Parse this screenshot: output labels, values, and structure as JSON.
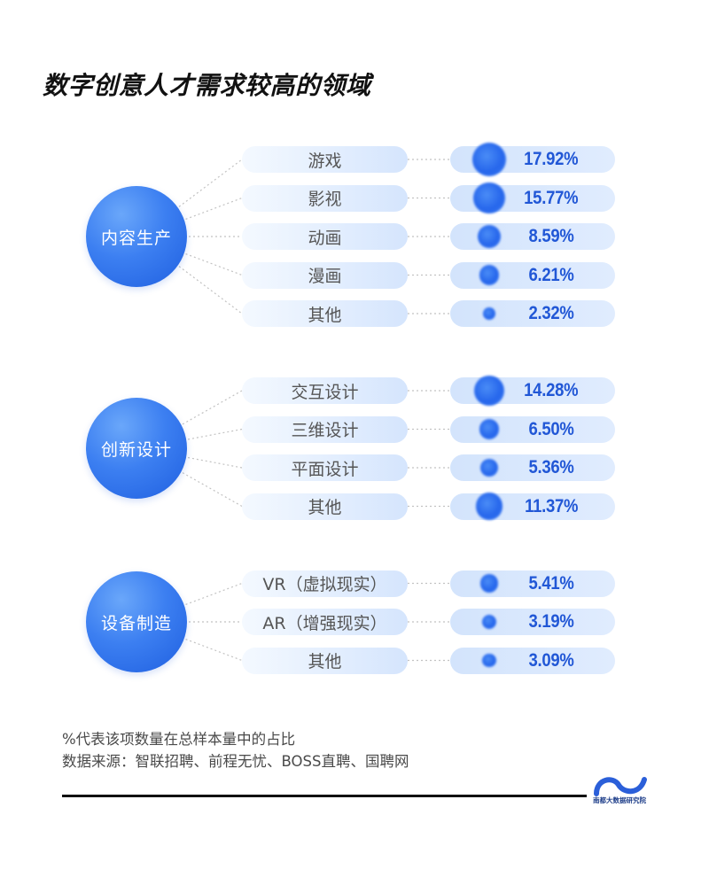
{
  "chart_data": {
    "type": "table",
    "title": "数字创意人才需求较高的领域",
    "groups": [
      {
        "name": "内容生产",
        "items": [
          {
            "label": "游戏",
            "value": 17.92,
            "display": "17.92%"
          },
          {
            "label": "影视",
            "value": 15.77,
            "display": "15.77%"
          },
          {
            "label": "动画",
            "value": 8.59,
            "display": "8.59%"
          },
          {
            "label": "漫画",
            "value": 6.21,
            "display": "6.21%"
          },
          {
            "label": "其他",
            "value": 2.32,
            "display": "2.32%"
          }
        ]
      },
      {
        "name": "创新设计",
        "items": [
          {
            "label": "交互设计",
            "value": 14.28,
            "display": "14.28%"
          },
          {
            "label": "三维设计",
            "value": 6.5,
            "display": "6.50%"
          },
          {
            "label": "平面设计",
            "value": 5.36,
            "display": "5.36%"
          },
          {
            "label": "其他",
            "value": 11.37,
            "display": "11.37%"
          }
        ]
      },
      {
        "name": "设备制造",
        "items": [
          {
            "label": "VR（虚拟现实）",
            "value": 5.41,
            "display": "5.41%"
          },
          {
            "label": "AR（增强现实）",
            "value": 3.19,
            "display": "3.19%"
          },
          {
            "label": "其他",
            "value": 3.09,
            "display": "3.09%"
          }
        ]
      }
    ]
  },
  "footer": {
    "note": "%代表该项数量在总样本量中的占比",
    "source": "数据来源：智联招聘、前程无忧、BOSS直聘、国聘网"
  },
  "logo": {
    "icon": "wave-logo-icon",
    "text": "南都大数据研究院"
  },
  "colors": {
    "accent": "#2563eb",
    "value_text": "#2157d6",
    "circle_light": "#6aa7fa",
    "circle_dark": "#1f5fe0",
    "pill_light": "#f4f9ff",
    "pill_blue": "#d5e5fd",
    "logo_blue": "#2b5fd9"
  }
}
